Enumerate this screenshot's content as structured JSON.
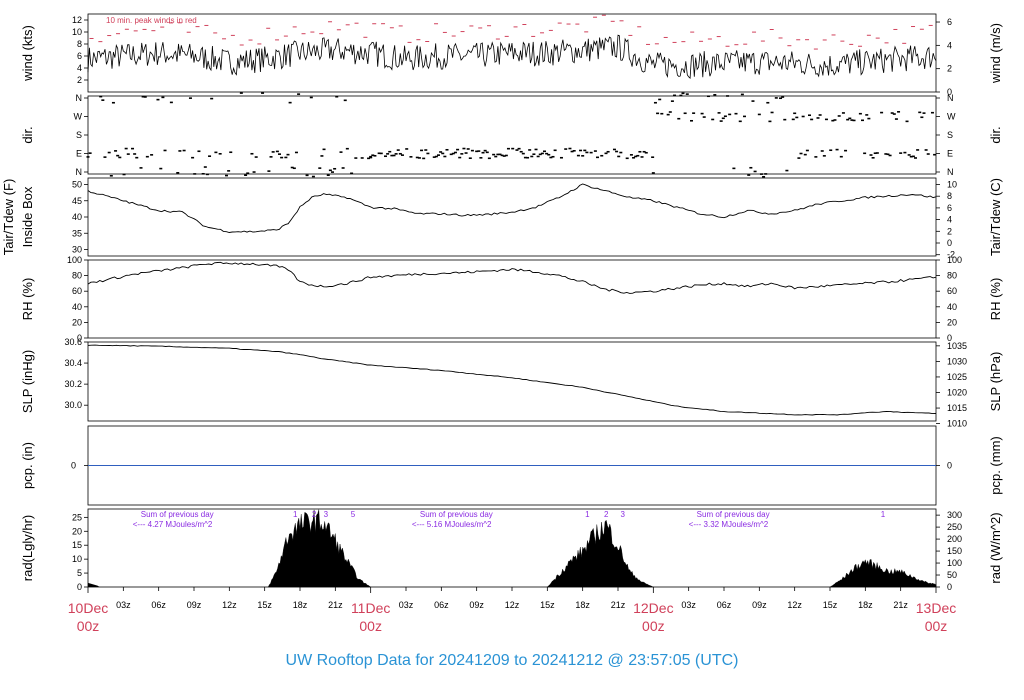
{
  "footer": "UW Rooftop Data for 20241209  to  20241212 @ 23:57:05  (UTC)",
  "colors": {
    "peak": "#d0405a",
    "precip_line": "#2f5fbf",
    "radiation_notes": "#8a2be2",
    "day_labels": "#d0405a",
    "footer": "#2a93d5"
  },
  "x_axis": {
    "hour_labels": [
      "03z",
      "06z",
      "09z",
      "12z",
      "15z",
      "18z",
      "21z",
      "03z",
      "06z",
      "09z",
      "12z",
      "15z",
      "18z",
      "21z",
      "03z",
      "06z",
      "09z",
      "12z",
      "15z",
      "18z",
      "21z"
    ],
    "day_labels": [
      {
        "date": "10Dec",
        "hour": "00z"
      },
      {
        "date": "11Dec",
        "hour": "00z"
      },
      {
        "date": "12Dec",
        "hour": "00z"
      },
      {
        "date": "13Dec",
        "hour": "00z"
      }
    ]
  },
  "chart_data": [
    {
      "id": "wind",
      "type": "line",
      "ylabel": "wind (kts)",
      "ylabel_right": "wind (m/s)",
      "ylim": [
        0,
        13
      ],
      "yticks_left": [
        "2",
        "4",
        "6",
        "8",
        "10",
        "12"
      ],
      "yticks_right": [
        "0",
        "2",
        "4",
        "6"
      ],
      "annotation": "10 min. peak winds in red",
      "series": [
        {
          "x_hours": [
            0,
            3,
            6,
            9,
            12,
            15,
            18,
            21,
            24,
            27,
            30,
            33,
            36,
            39,
            42,
            45,
            48,
            51,
            54,
            57,
            60,
            63,
            66,
            69,
            72
          ],
          "values": [
            5.5,
            6.0,
            6.5,
            6.0,
            5.0,
            5.5,
            6.5,
            7.0,
            6.5,
            5.5,
            6.0,
            6.0,
            6.5,
            6.5,
            7.0,
            7.5,
            4.5,
            4.5,
            4.8,
            5.0,
            4.8,
            4.5,
            5.0,
            5.5,
            6.0
          ]
        },
        {
          "x_hours": [
            0,
            3,
            6,
            9,
            12,
            15,
            18,
            21,
            24,
            27,
            30,
            33,
            36,
            39,
            42,
            45,
            48,
            51,
            54,
            57,
            60,
            63,
            66,
            69,
            72
          ],
          "values": [
            9.5,
            10,
            10.5,
            10,
            9,
            9.5,
            10.5,
            11,
            10.5,
            9.5,
            10,
            10,
            10.5,
            10.5,
            11,
            11.5,
            8.5,
            8.5,
            8.8,
            9,
            8.8,
            8.5,
            9,
            9.5,
            10
          ]
        }
      ]
    },
    {
      "id": "direction",
      "type": "scatter",
      "ylabel": "dir.",
      "ylabel_right": "dir.",
      "categories": [
        "N",
        "E",
        "S",
        "W",
        "N"
      ],
      "regimes": [
        {
          "x_hours": [
            0,
            6
          ],
          "values": [
            "N",
            "E"
          ]
        },
        {
          "x_hours": [
            6,
            24
          ],
          "values": [
            "E",
            "N"
          ]
        },
        {
          "x_hours": [
            24,
            48
          ],
          "values": [
            "E"
          ]
        },
        {
          "x_hours": [
            48,
            60
          ],
          "values": [
            "N",
            "W"
          ]
        },
        {
          "x_hours": [
            60,
            72
          ],
          "values": [
            "E",
            "W"
          ]
        }
      ]
    },
    {
      "id": "temperature",
      "type": "line",
      "ylabel": "Inside Box",
      "ylabel_outer": "Tair/Tdew (F)",
      "ylabel_right": "Tair/Tdew (C)",
      "ylim": [
        28,
        52
      ],
      "yticks_left": [
        "30",
        "35",
        "40",
        "45",
        "50"
      ],
      "yticks_right": [
        "-2",
        "0",
        "2",
        "4",
        "6",
        "8",
        "10"
      ],
      "series": [
        {
          "x_hours": [
            0,
            2,
            4,
            6,
            8,
            10,
            12,
            14,
            16,
            17,
            18,
            19,
            20,
            22,
            24,
            26,
            28,
            30,
            32,
            34,
            36,
            38,
            40,
            42,
            44,
            46,
            48,
            50,
            52,
            54,
            56,
            58,
            60,
            62,
            64,
            66,
            68,
            70,
            72
          ],
          "values": [
            48,
            46,
            44,
            42,
            41.5,
            37,
            35.5,
            35.5,
            36,
            38,
            43,
            46,
            47,
            46,
            43,
            42.5,
            41,
            41,
            40.5,
            40.8,
            41.5,
            43,
            46,
            50,
            48,
            46,
            45,
            43,
            41,
            40,
            42,
            41,
            42,
            44,
            45,
            46,
            46.5,
            47,
            46
          ]
        }
      ]
    },
    {
      "id": "rh",
      "type": "line",
      "ylabel": "RH (%)",
      "ylabel_right": "RH (%)",
      "ylim": [
        0,
        100
      ],
      "yticks_left": [
        "0",
        "20",
        "40",
        "60",
        "80",
        "100"
      ],
      "yticks_right": [
        "0",
        "20",
        "40",
        "60",
        "80",
        "100"
      ],
      "series": [
        {
          "x_hours": [
            0,
            2,
            4,
            6,
            8,
            10,
            12,
            14,
            16,
            17,
            18,
            19,
            20,
            22,
            24,
            26,
            28,
            30,
            32,
            34,
            36,
            38,
            40,
            42,
            44,
            46,
            48,
            50,
            52,
            54,
            56,
            58,
            60,
            62,
            64,
            66,
            68,
            70,
            72
          ],
          "values": [
            70,
            76,
            82,
            86,
            90,
            95,
            96,
            95,
            92,
            88,
            72,
            68,
            66,
            70,
            78,
            80,
            82,
            83,
            84,
            86,
            88,
            85,
            80,
            72,
            62,
            58,
            60,
            64,
            68,
            70,
            66,
            70,
            64,
            66,
            68,
            70,
            72,
            75,
            78
          ]
        }
      ]
    },
    {
      "id": "slp",
      "type": "line",
      "ylabel": "SLP (inHg)",
      "ylabel_right": "SLP (hPa)",
      "ylim": [
        29.85,
        30.6
      ],
      "yticks_left": [
        "30.0",
        "30.2",
        "30.4",
        "30.6"
      ],
      "yticks_right": [
        "1010",
        "1015",
        "1020",
        "1025",
        "1030",
        "1035"
      ],
      "series": [
        {
          "x_hours": [
            0,
            6,
            12,
            16,
            18,
            20,
            24,
            30,
            36,
            42,
            46,
            50,
            54,
            58,
            60,
            64,
            66,
            68,
            72
          ],
          "values": [
            30.57,
            30.56,
            30.54,
            30.51,
            30.48,
            30.44,
            30.38,
            30.33,
            30.26,
            30.17,
            30.08,
            29.99,
            29.94,
            29.92,
            29.91,
            29.91,
            29.93,
            29.94,
            29.92
          ]
        }
      ]
    },
    {
      "id": "precip",
      "type": "line",
      "ylabel": "pcp. (in)",
      "ylabel_right": "pcp. (mm)",
      "yticks_left": [
        "0"
      ],
      "yticks_right": [
        "0"
      ],
      "series": [
        {
          "x_hours": [
            0,
            72
          ],
          "values": [
            0,
            0
          ]
        }
      ]
    },
    {
      "id": "radiation",
      "type": "area",
      "ylabel": "rad(Lgly/hr)",
      "ylabel_right": "rad (W/m^2)",
      "ylim": [
        0,
        28
      ],
      "yticks_left": [
        "0",
        "5",
        "10",
        "15",
        "20",
        "25"
      ],
      "yticks_right": [
        "0",
        "50",
        "100",
        "150",
        "200",
        "250",
        "300"
      ],
      "day_notes": [
        {
          "line1": "Sum of previous day",
          "line2": "<--- 4.27 MJoules/m^2"
        },
        {
          "line1": "Sum of previous day",
          "line2": "<--- 5.16 MJoules/m^2"
        },
        {
          "line1": "Sum of previous day",
          "line2": "<--- 3.32 MJoules/m^2"
        }
      ],
      "markers": [
        "1",
        "2",
        "3",
        "5",
        "1",
        "2",
        "3",
        "1"
      ],
      "series": [
        {
          "x_hours": [
            15.3,
            16,
            17,
            18,
            19,
            20,
            21,
            22,
            23,
            24,
            39,
            40,
            41,
            42,
            43,
            44,
            45,
            46,
            47,
            48,
            63,
            64,
            65,
            66,
            67,
            68,
            69,
            70,
            71,
            72
          ],
          "values": [
            0,
            6,
            20,
            24,
            26,
            25,
            18,
            10,
            3,
            0,
            0,
            5,
            10,
            14,
            20,
            24,
            16,
            6,
            2,
            0,
            0,
            3,
            7,
            10,
            8,
            6,
            6,
            4,
            2,
            1
          ]
        }
      ]
    }
  ]
}
